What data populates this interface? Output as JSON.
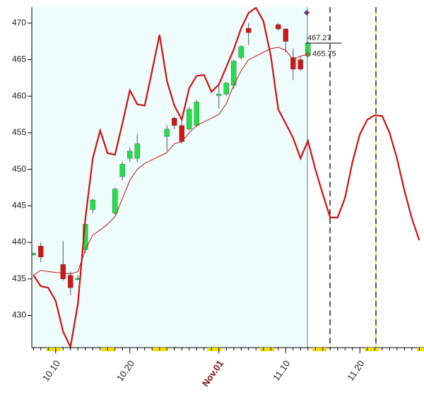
{
  "chart_data": {
    "type": "candlestick",
    "categories": [
      null,
      null,
      null,
      "10.10",
      null,
      null,
      null,
      null,
      null,
      null,
      null,
      null,
      null,
      "10.20",
      null,
      null,
      null,
      null,
      null,
      null,
      null,
      null,
      null,
      null,
      null,
      "Nov.01",
      null,
      null,
      null,
      null,
      null,
      null,
      null,
      null,
      "11.10",
      null,
      null,
      null,
      null,
      null,
      null,
      null,
      null,
      null,
      "11.20",
      null,
      null,
      null,
      null,
      null,
      null,
      null,
      null
    ],
    "open": [
      438.3,
      439.5,
      null,
      null,
      437,
      435.5,
      434.9,
      439,
      444.5,
      null,
      null,
      444,
      449,
      451.5,
      451.5,
      null,
      null,
      null,
      454.5,
      457,
      456,
      455.5,
      456,
      null,
      null,
      460.1,
      460.3,
      461.5,
      465.3,
      469.3,
      null,
      null,
      null,
      469.8,
      469.2,
      465.3,
      465,
      465.5,
      null,
      null,
      null,
      null,
      null,
      null,
      null,
      null,
      null,
      null,
      null,
      null,
      null,
      null,
      null
    ],
    "high": [
      438.6,
      440,
      null,
      null,
      440.2,
      436,
      435.5,
      442.5,
      446,
      null,
      null,
      447.5,
      451,
      453,
      454.8,
      null,
      null,
      null,
      456,
      457.2,
      456.5,
      458.5,
      459.5,
      null,
      null,
      461.5,
      462,
      465,
      467,
      470,
      null,
      null,
      null,
      470,
      469.3,
      466.5,
      465.5,
      467.5,
      null,
      null,
      null,
      null,
      null,
      null,
      null,
      null,
      null,
      null,
      null,
      null,
      null,
      null,
      null
    ],
    "low": [
      438.2,
      437.3,
      null,
      null,
      434.8,
      432.8,
      434.8,
      438.5,
      444,
      null,
      null,
      443.8,
      448.5,
      451,
      451,
      null,
      null,
      null,
      452.5,
      455.5,
      453.5,
      455.3,
      455.8,
      null,
      null,
      458.3,
      460,
      461,
      465,
      467,
      null,
      null,
      null,
      469,
      466,
      462.2,
      463.5,
      465.3,
      null,
      null,
      null,
      null,
      null,
      null,
      null,
      null,
      null,
      null,
      null,
      null,
      null,
      null,
      null
    ],
    "close": [
      438.5,
      438,
      null,
      null,
      435,
      433.8,
      435.1,
      442.5,
      445.8,
      null,
      null,
      447.3,
      450.7,
      452.5,
      453.5,
      null,
      null,
      null,
      455.5,
      456,
      453.8,
      458.2,
      459.2,
      null,
      null,
      460.3,
      461.8,
      464.8,
      466.8,
      468.7,
      null,
      null,
      null,
      469.2,
      467.5,
      463.7,
      463.7,
      467.27,
      null,
      null,
      null,
      null,
      null,
      null,
      null,
      null,
      null,
      null,
      null,
      null,
      null,
      null,
      null
    ],
    "up_color": "#22e04a",
    "down_color": "#d41515",
    "lines": [
      {
        "color": "#d01010",
        "width": 2.2,
        "values": [
          435.5,
          434,
          433.8,
          432,
          427.8,
          425.7,
          431.6,
          443.2,
          451.5,
          455.3,
          452.2,
          452,
          456.3,
          460.8,
          458.9,
          458.7,
          463.5,
          468.4,
          462.1,
          458.7,
          456.8,
          461.1,
          462.8,
          462.9,
          460.6,
          461.6,
          464,
          466.4,
          469.3,
          471.4,
          472.1,
          470.3,
          465.5,
          458.2,
          456.3,
          454.3,
          451.5,
          453.9,
          450,
          446.6,
          443.4,
          443.4,
          446.1,
          451,
          454.8,
          456.8,
          457.4,
          457.3,
          455,
          451.5,
          447.1,
          443.3,
          440.3
        ]
      },
      {
        "color": "#c01818",
        "width": 1,
        "values": [
          435.5,
          436.2,
          436,
          435.9,
          435.8,
          435.7,
          436,
          439,
          441,
          441.7,
          442.5,
          443.5,
          446,
          448.5,
          450,
          450.8,
          451.3,
          451.8,
          452.3,
          453.5,
          453.8,
          455,
          456,
          456.5,
          457,
          457.5,
          459,
          461.5,
          463.5,
          465,
          465.5,
          466,
          466.5,
          466.7,
          466.3,
          465,
          465.5,
          465.75,
          null,
          null,
          null,
          null,
          null,
          null,
          null,
          null,
          null,
          null,
          null,
          null,
          null,
          null,
          null
        ]
      }
    ],
    "price_labels": [
      467.27,
      465.75
    ],
    "ylim": [
      425.6,
      472.2
    ],
    "yticks": [
      430,
      435,
      440,
      445,
      450,
      455,
      460,
      465,
      470
    ]
  }
}
